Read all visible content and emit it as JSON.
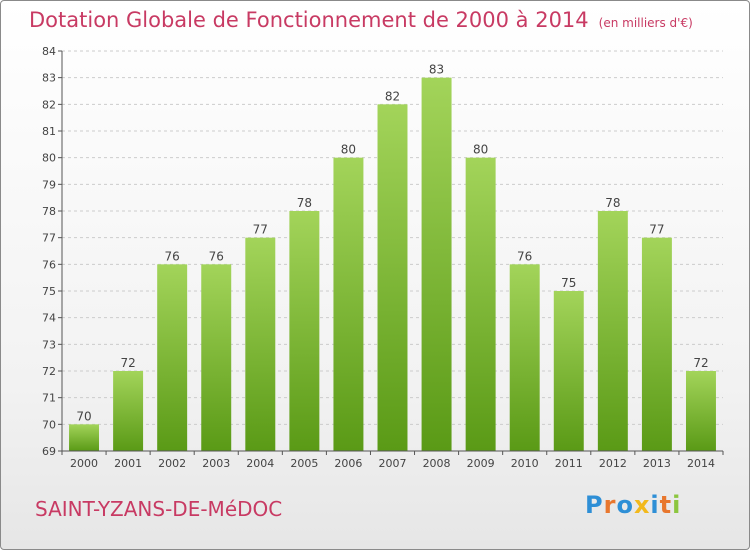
{
  "title": "Dotation Globale de Fonctionnement de 2000 à 2014",
  "subtitle": "(en milliers d'€)",
  "city": "SAINT-YZANS-DE-MéDOC",
  "logo": {
    "letters": [
      {
        "char": "P",
        "color": "#2e8fd6"
      },
      {
        "char": "r",
        "color": "#e8772e"
      },
      {
        "char": "o",
        "color": "#2e8fd6"
      },
      {
        "char": "x",
        "color": "#f2b91c"
      },
      {
        "char": "i",
        "color": "#2e8fd6"
      },
      {
        "char": "t",
        "color": "#e8772e"
      },
      {
        "char": "i",
        "color": "#8cc63f"
      }
    ]
  },
  "colors": {
    "bar_top": "#a3d45a",
    "bar_bottom": "#5a9a16",
    "grid": "#cccccc",
    "axis": "#555555",
    "text": "#444444",
    "accent": "#c83a63"
  },
  "chart_data": {
    "type": "bar",
    "categories": [
      "2000",
      "2001",
      "2002",
      "2003",
      "2004",
      "2005",
      "2006",
      "2007",
      "2008",
      "2009",
      "2010",
      "2011",
      "2012",
      "2013",
      "2014"
    ],
    "values": [
      70,
      72,
      76,
      76,
      77,
      78,
      80,
      82,
      83,
      80,
      76,
      75,
      78,
      77,
      72
    ],
    "ylim": [
      69,
      84
    ],
    "yticks": [
      69,
      70,
      71,
      72,
      73,
      74,
      75,
      76,
      77,
      78,
      79,
      80,
      81,
      82,
      83,
      84
    ],
    "grid": true,
    "data_labels": true
  }
}
